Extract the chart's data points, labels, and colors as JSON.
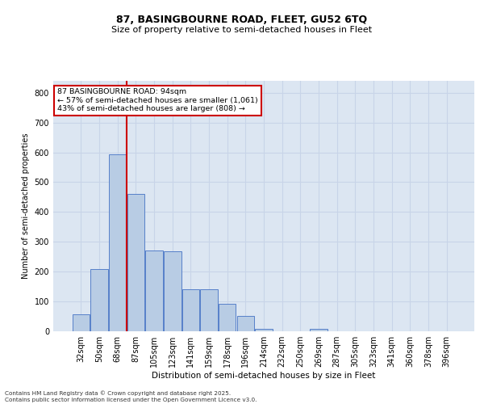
{
  "title_line1": "87, BASINGBOURNE ROAD, FLEET, GU52 6TQ",
  "title_line2": "Size of property relative to semi-detached houses in Fleet",
  "xlabel": "Distribution of semi-detached houses by size in Fleet",
  "ylabel": "Number of semi-detached properties",
  "categories": [
    "32sqm",
    "50sqm",
    "68sqm",
    "87sqm",
    "105sqm",
    "123sqm",
    "141sqm",
    "159sqm",
    "178sqm",
    "196sqm",
    "214sqm",
    "232sqm",
    "250sqm",
    "269sqm",
    "287sqm",
    "305sqm",
    "323sqm",
    "341sqm",
    "360sqm",
    "378sqm",
    "396sqm"
  ],
  "values": [
    57,
    209,
    593,
    460,
    271,
    268,
    141,
    141,
    91,
    51,
    9,
    0,
    0,
    9,
    0,
    0,
    0,
    0,
    0,
    0,
    0
  ],
  "bar_color": "#b8cce4",
  "bar_edge_color": "#4472c4",
  "vline_x": 2.5,
  "vline_color": "#cc0000",
  "annotation_title": "87 BASINGBOURNE ROAD: 94sqm",
  "annotation_line1": "← 57% of semi-detached houses are smaller (1,061)",
  "annotation_line2": "43% of semi-detached houses are larger (808) →",
  "ylim": [
    0,
    840
  ],
  "yticks": [
    0,
    100,
    200,
    300,
    400,
    500,
    600,
    700,
    800
  ],
  "grid_color": "#c8d4e8",
  "background_color": "#dce6f2",
  "footer_line1": "Contains HM Land Registry data © Crown copyright and database right 2025.",
  "footer_line2": "Contains public sector information licensed under the Open Government Licence v3.0."
}
